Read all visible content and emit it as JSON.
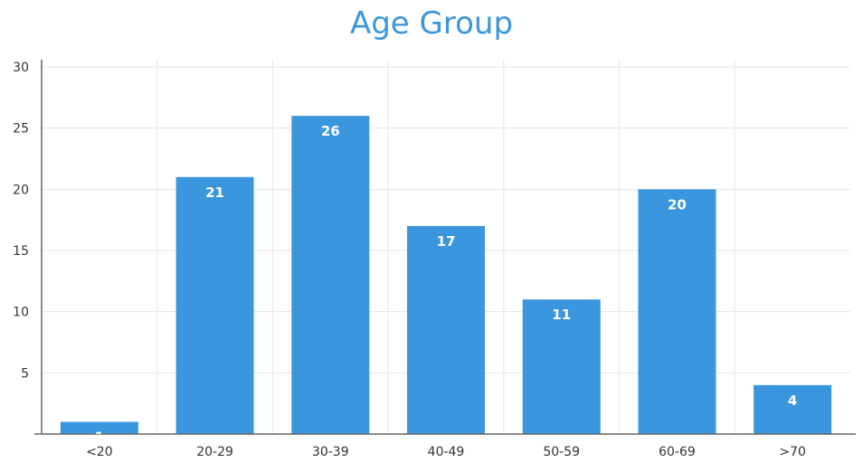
{
  "chart_data": {
    "type": "bar",
    "title": "Age Group",
    "xlabel": "",
    "ylabel": "",
    "categories": [
      "<20",
      "20-29",
      "30-39",
      "40-49",
      "50-59",
      "60-69",
      ">70"
    ],
    "values": [
      1,
      21,
      26,
      17,
      11,
      20,
      4
    ],
    "ylim": [
      0,
      30
    ],
    "yticks": [
      5,
      10,
      15,
      20,
      25,
      30
    ],
    "grid": true,
    "data_labels": true,
    "legend": "none",
    "bar_color": "#3a96dd",
    "label_color": "#ffffff"
  }
}
